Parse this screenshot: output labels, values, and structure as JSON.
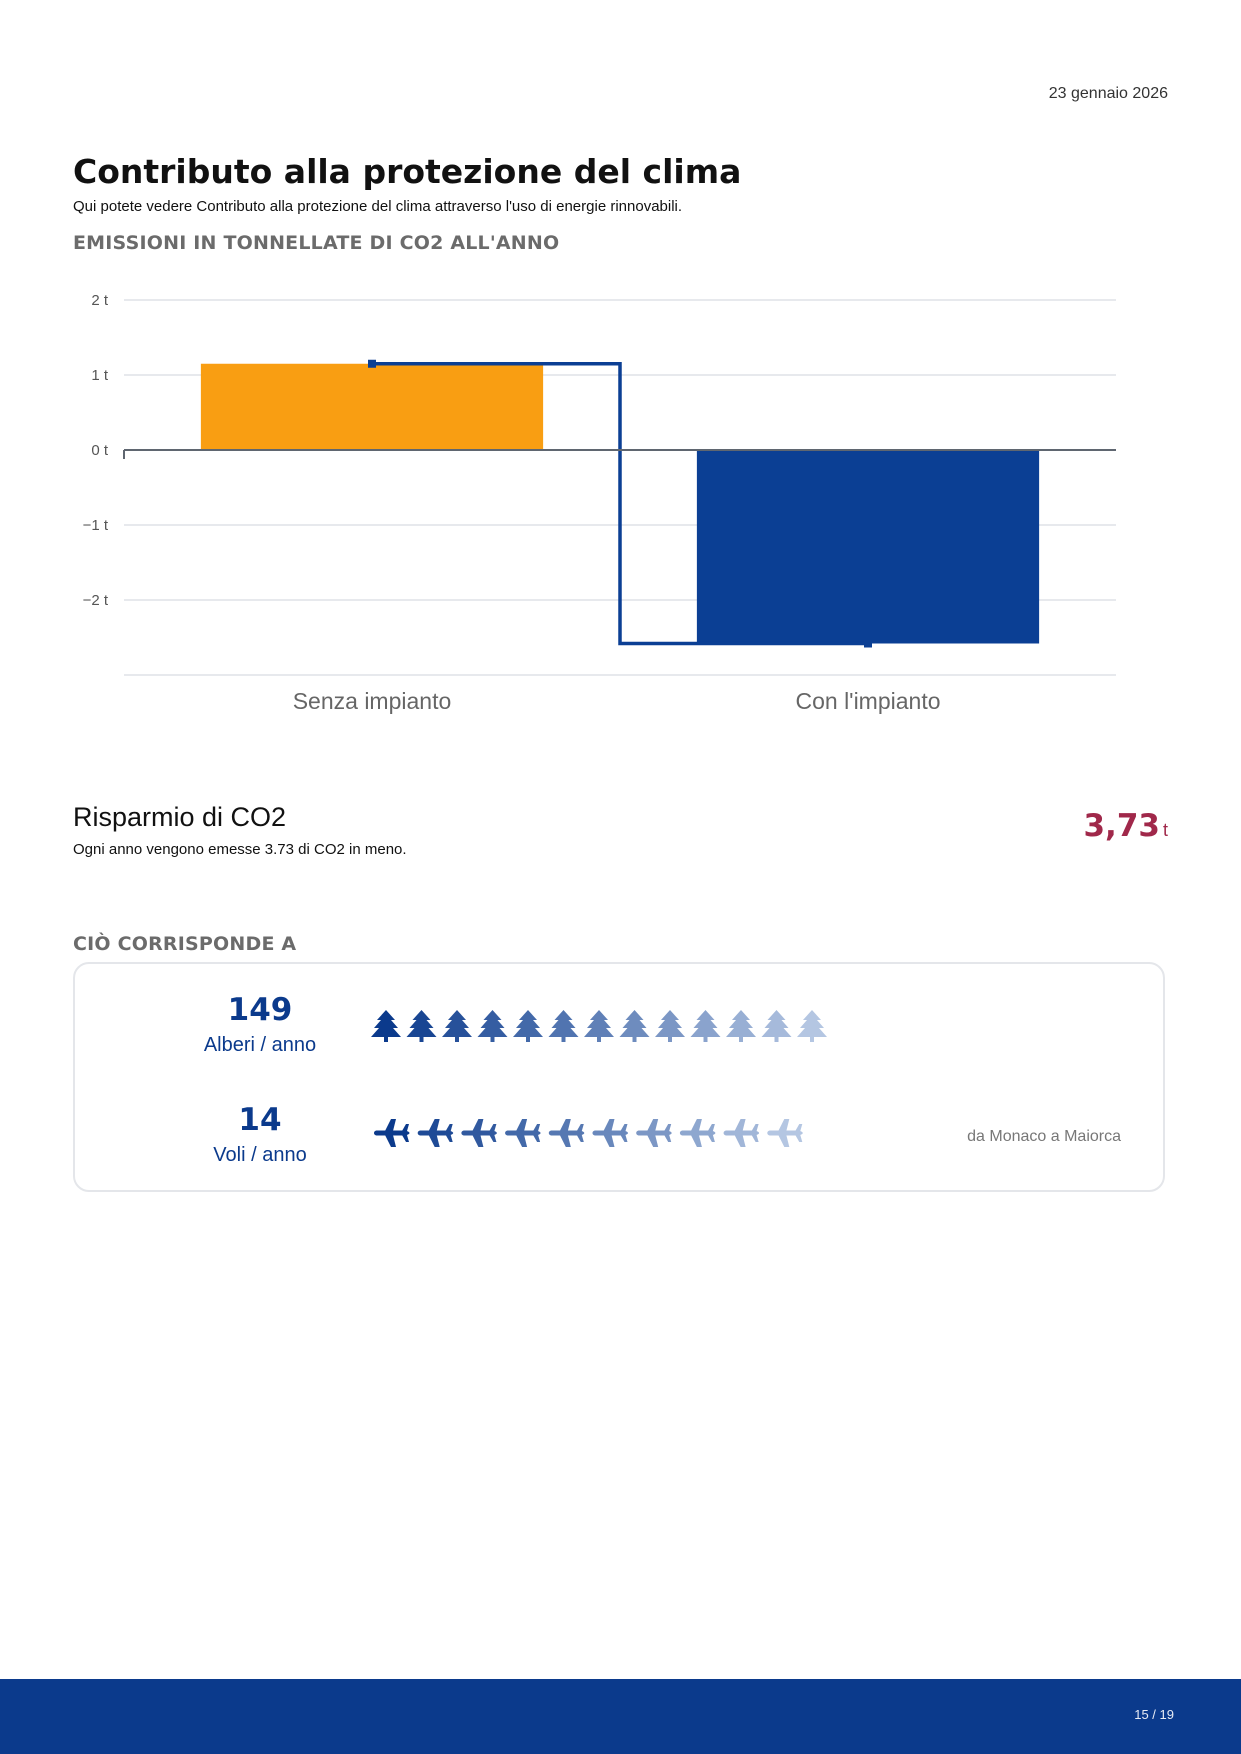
{
  "header": {
    "date": "23 gennaio 2026"
  },
  "page": {
    "title": "Contributo alla protezione del clima",
    "subtitle": "Qui potete vedere Contributo alla protezione del clima attraverso l'uso di energie rinnovabili.",
    "chart_section_label": "EMISSIONI IN TONNELLATE DI CO2 ALL'ANNO"
  },
  "chart_data": {
    "type": "bar",
    "title": "EMISSIONI IN TONNELLATE DI CO2 ALL'ANNO",
    "categories": [
      "Senza impianto",
      "Con l'impianto"
    ],
    "values": [
      1.15,
      -2.58
    ],
    "bar_colors": [
      "#f99e12",
      "#0b3f94"
    ],
    "connector": {
      "type": "step",
      "color": "#0b3f94",
      "markers": [
        1.15,
        -2.58
      ]
    },
    "ylim": [
      -3,
      2
    ],
    "yticks": [
      2,
      1,
      0,
      -1,
      -2
    ],
    "ytick_labels": [
      "2 t",
      "1 t",
      "0 t",
      "−1 t",
      "−2 t"
    ],
    "xlabel": "",
    "ylabel": "",
    "grid": true
  },
  "savings": {
    "title": "Risparmio di CO2",
    "description": "Ogni anno vengono emesse 3.73 di CO2 in meno.",
    "value": "3,73",
    "unit": "t",
    "value_color": "#a0284a"
  },
  "equivalents": {
    "section_label": "CIÒ CORRISPONDE A",
    "items": [
      {
        "value": "149",
        "label": "Alberi / anno",
        "icon": "tree-icon",
        "icon_count": 13,
        "note": ""
      },
      {
        "value": "14",
        "label": "Voli / anno",
        "icon": "airplane-icon",
        "icon_count": 10,
        "note": "da Monaco a Maiorca"
      }
    ],
    "colors": {
      "dark": "#0b3a8c",
      "light": "#b4c6e2"
    }
  },
  "footer": {
    "page": "15 / 19"
  }
}
